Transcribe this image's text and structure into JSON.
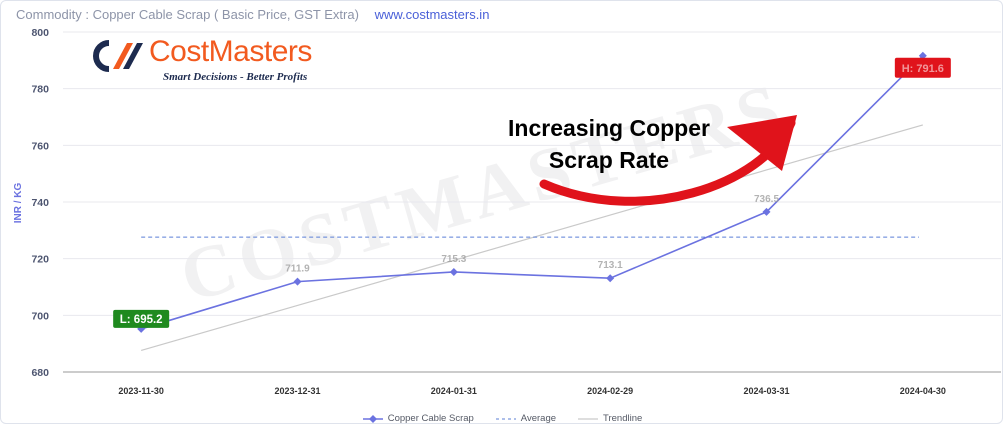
{
  "header": {
    "commodity_text": "Commodity : Copper Cable Scrap ( Basic Price, GST Extra)",
    "website": "www.costmasters.in"
  },
  "logo": {
    "brand": "CostMasters",
    "tagline": "Smart Decisions - Better Profits",
    "icon": "cm-logo-icon"
  },
  "watermark": "COSTMASTERS",
  "annotation": "Increasing Copper Scrap Rate",
  "colors": {
    "series": "#6b72e0",
    "average": "#5b7fd6",
    "trend": "#c9c9c9",
    "low_badge": "#1f8a1f",
    "high_badge": "#e0131b",
    "arrow": "#e0131b"
  },
  "chart_data": {
    "type": "line",
    "categories": [
      "2023-11-30",
      "2023-12-31",
      "2024-01-31",
      "2024-02-29",
      "2024-03-31",
      "2024-04-30"
    ],
    "series": [
      {
        "name": "Copper Cable Scrap",
        "values": [
          695.2,
          711.9,
          715.3,
          713.1,
          736.5,
          791.6
        ]
      }
    ],
    "average": 727.6,
    "trendline": [
      687.6,
      703.5,
      719.4,
      735.4,
      751.3,
      767.2
    ],
    "ylabel": "INR / KG",
    "ylim": [
      680,
      800
    ],
    "yticks": [
      680,
      700,
      720,
      740,
      760,
      780,
      800
    ],
    "low_label": "L: 695.2",
    "legend": [
      "Copper Cable Scrap",
      "Average",
      "Trendline"
    ],
    "legend_position": "bottom",
    "grid": true
  }
}
